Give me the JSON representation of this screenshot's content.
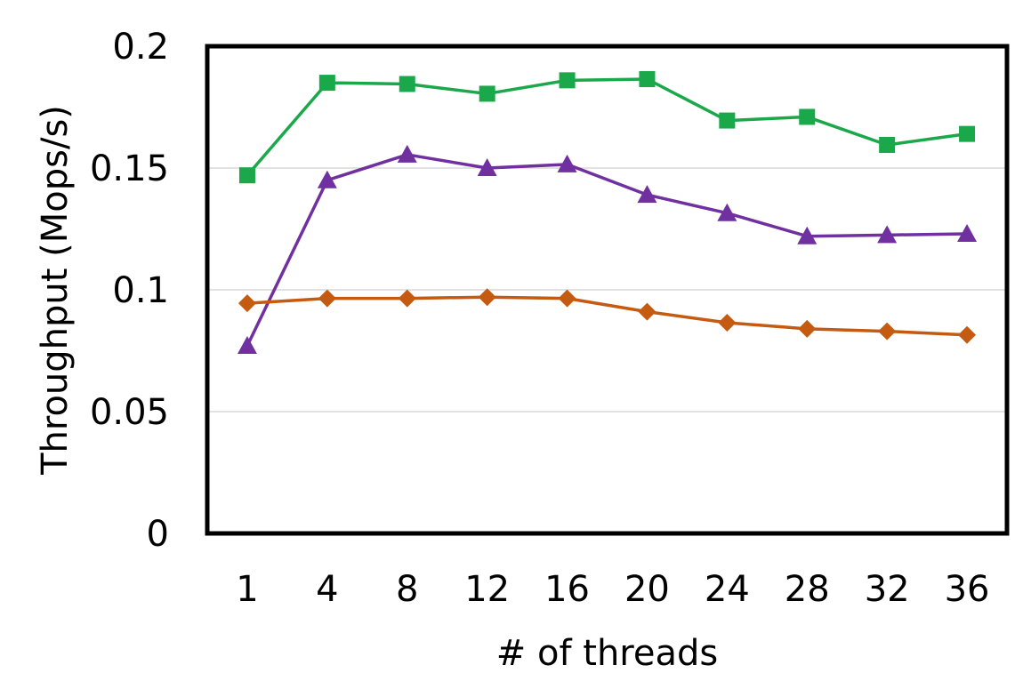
{
  "chart_data": {
    "type": "line",
    "title": "",
    "xlabel": "# of threads",
    "ylabel": "Throughput (Mops/s)",
    "categories": [
      "1",
      "4",
      "8",
      "12",
      "16",
      "20",
      "24",
      "28",
      "32",
      "36"
    ],
    "ylim": [
      0,
      0.2
    ],
    "yticks": [
      "0",
      "0.05",
      "0.1",
      "0.15",
      "0.2"
    ],
    "grid": true,
    "legend": "none",
    "series": [
      {
        "color": "#1aa84a",
        "marker": "square",
        "values": [
          0.147,
          0.185,
          0.1845,
          0.1805,
          0.186,
          0.1865,
          0.1695,
          0.171,
          0.1595,
          0.164
        ]
      },
      {
        "color": "#7030a0",
        "marker": "triangle",
        "values": [
          0.077,
          0.145,
          0.1555,
          0.15,
          0.1515,
          0.139,
          0.1315,
          0.122,
          0.1225,
          0.123
        ]
      },
      {
        "color": "#c55a11",
        "marker": "diamond",
        "values": [
          0.0945,
          0.0965,
          0.0965,
          0.097,
          0.0965,
          0.091,
          0.0865,
          0.084,
          0.083,
          0.0815
        ]
      }
    ]
  }
}
